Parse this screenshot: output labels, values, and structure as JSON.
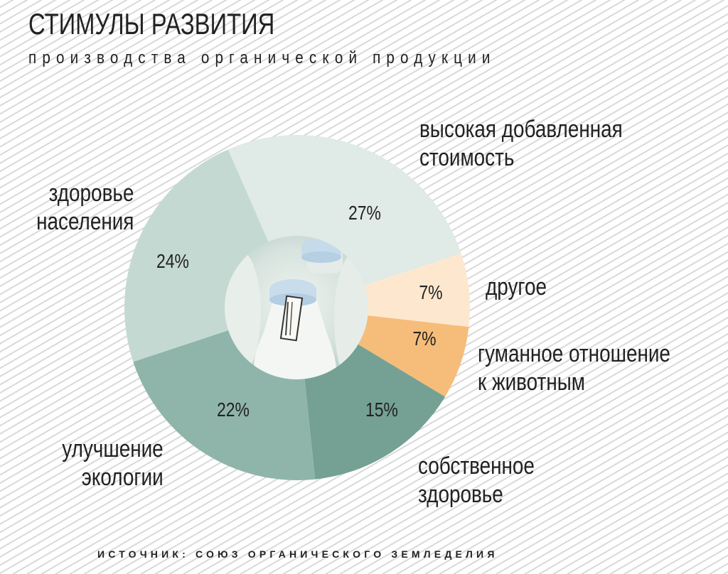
{
  "title": "СТИМУЛЫ РАЗВИТИЯ",
  "subtitle": "производства органической продукции",
  "source": "ИСТОЧНИК: СОЮЗ ОРГАНИЧЕСКОГО ЗЕМЛЕДЕЛИЯ",
  "chart_data": {
    "type": "pie",
    "title": "СТИМУЛЫ РАЗВИТИЯ производства органической продукции",
    "donut": true,
    "center_image": "milk-bottles-photo",
    "categories": [
      "высокая добавленная стоимость",
      "другое",
      "гуманное отношение к животным",
      "собственное здоровье",
      "улучшение экологии",
      "здоровье населения"
    ],
    "values": [
      27,
      7,
      7,
      15,
      22,
      24
    ],
    "value_labels": [
      "27%",
      "7%",
      "7%",
      "15%",
      "22%",
      "24%"
    ],
    "colors": [
      "#e0eae6",
      "#fde8cf",
      "#f6bd7a",
      "#74a194",
      "#8fb5ab",
      "#c5d9d3"
    ],
    "source": "ИСТОЧНИК: СОЮЗ ОРГАНИЧЕСКОГО ЗЕМЛЕДЕЛИЯ"
  },
  "labels": {
    "value_added": [
      "высокая добавленная",
      "стоимость"
    ],
    "other": [
      "другое"
    ],
    "humane": [
      "гуманное отношение",
      "к животным"
    ],
    "own_health": [
      "собственное",
      "здоровье"
    ],
    "ecology": [
      "улучшение",
      "экологии"
    ],
    "public_health": [
      "здоровье",
      "населения"
    ]
  }
}
